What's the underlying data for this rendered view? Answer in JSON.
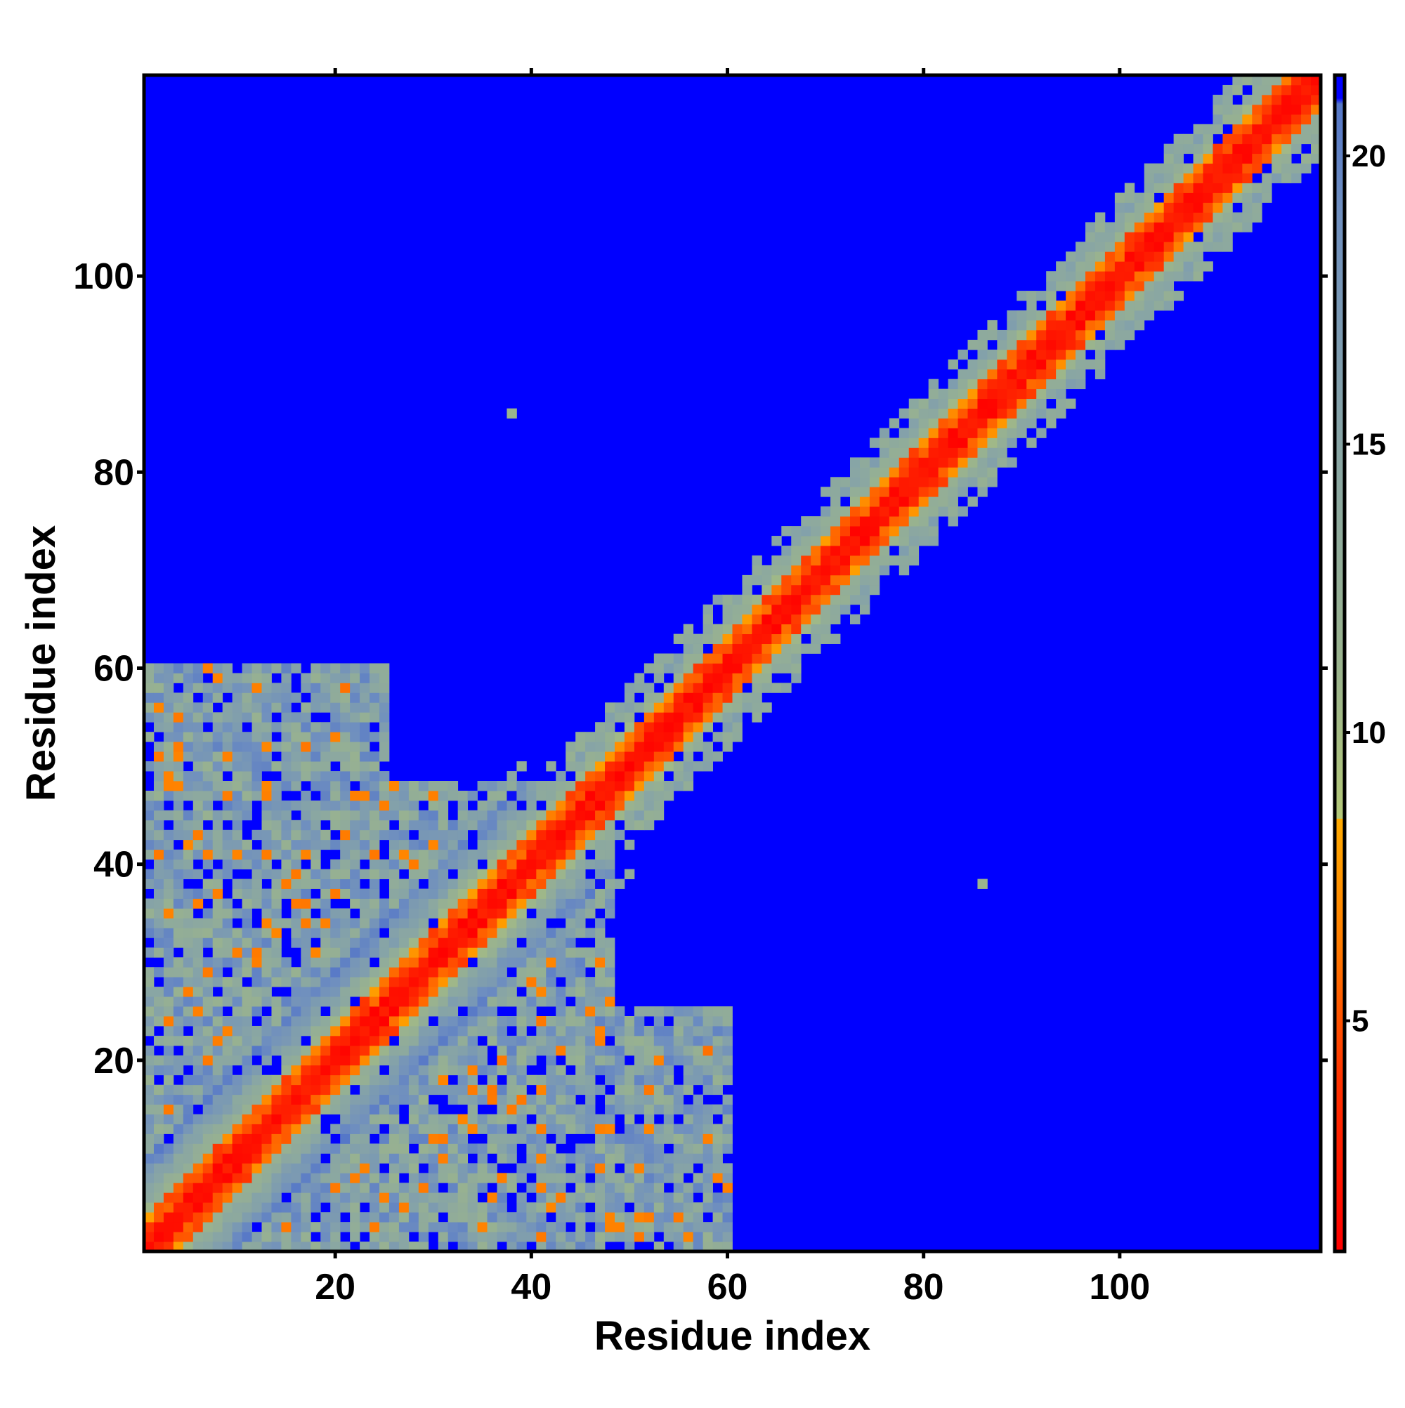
{
  "chart_data": {
    "type": "heatmap",
    "title": "",
    "xlabel": "Residue index",
    "ylabel": "Residue index",
    "n_residues": 120,
    "xlim": [
      1,
      120
    ],
    "ylim": [
      1,
      120
    ],
    "xticks": [
      20,
      40,
      60,
      80,
      100
    ],
    "yticks": [
      20,
      40,
      60,
      80,
      100
    ],
    "colorbar": {
      "label": "",
      "range": [
        1,
        21.4
      ],
      "ticks": [
        5,
        10,
        15,
        20
      ],
      "stops": [
        {
          "value": 1,
          "color": "#ff0000"
        },
        {
          "value": 4,
          "color": "#ff3300"
        },
        {
          "value": 6.5,
          "color": "#ff8000"
        },
        {
          "value": 8.5,
          "color": "#ffaa00"
        },
        {
          "value": 8.51,
          "color": "#b4c878"
        },
        {
          "value": 11,
          "color": "#9bb48c"
        },
        {
          "value": 15,
          "color": "#88a5a5"
        },
        {
          "value": 19,
          "color": "#6f8fbf"
        },
        {
          "value": 20.9,
          "color": "#5577c8"
        },
        {
          "value": 21,
          "color": "#0000ff"
        }
      ]
    },
    "grid": false,
    "description_of_values": "Symmetric residue-residue distance map: values ~1-4 on the diagonal band, 5-8 near-diagonal, 9-20 in the halo and off-diagonal contact patches (residues ~1-50 with ~1-50), >=21 elsewhere.",
    "features": {
      "diagonal": {
        "width_inner": 1.5,
        "width_outer": 7
      },
      "contact_patches": [
        {
          "i_range": [
            1,
            48
          ],
          "j_range": [
            1,
            48
          ],
          "ring_center": [
            20,
            22
          ],
          "ring_radius": 14
        },
        {
          "i_range": [
            30,
            60
          ],
          "j_range": [
            1,
            25
          ],
          "ring_center": [
            42,
            15
          ],
          "ring_radius": 10
        }
      ],
      "isolated_points": [
        {
          "i": 21,
          "j": 58,
          "value": 6
        },
        {
          "i": 58,
          "j": 21,
          "value": 6
        },
        {
          "i": 38,
          "j": 86,
          "value": 11
        },
        {
          "i": 86,
          "j": 38,
          "value": 11
        }
      ]
    }
  }
}
